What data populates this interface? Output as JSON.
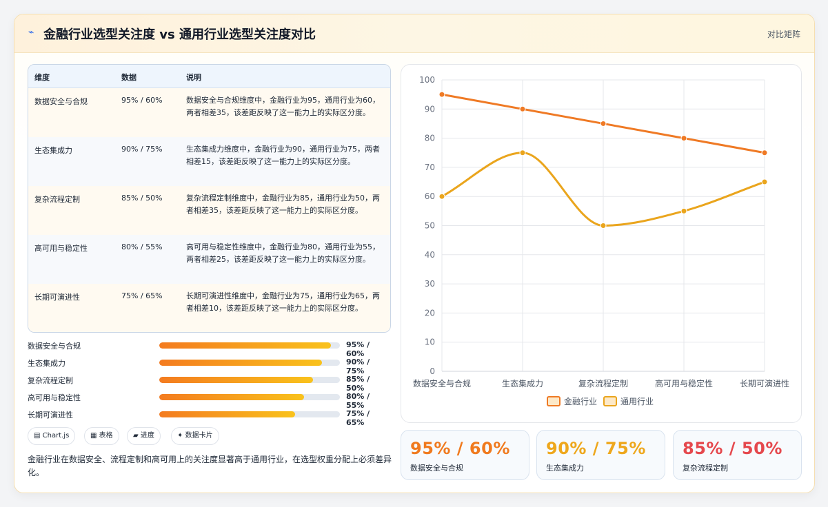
{
  "header": {
    "icon": "bolt-icon",
    "title": "金融行业选型关注度 vs 通用行业选型关注度对比",
    "tag": "对比矩阵"
  },
  "table": {
    "headers": [
      "维度",
      "数据",
      "说明"
    ],
    "rows": [
      {
        "dim": "数据安全与合规",
        "value": "95% / 60%",
        "desc": "数据安全与合规维度中，金融行业为95，通用行业为60，两者相差35，该差距反映了这一能力上的实际区分度。"
      },
      {
        "dim": "生态集成力",
        "value": "90% / 75%",
        "desc": "生态集成力维度中，金融行业为90，通用行业为75，两者相差15，该差距反映了这一能力上的实际区分度。"
      },
      {
        "dim": "复杂流程定制",
        "value": "85% / 50%",
        "desc": "复杂流程定制维度中，金融行业为85，通用行业为50，两者相差35，该差距反映了这一能力上的实际区分度。"
      },
      {
        "dim": "高可用与稳定性",
        "value": "80% / 55%",
        "desc": "高可用与稳定性维度中，金融行业为80，通用行业为55，两者相差25，该差距反映了这一能力上的实际区分度。"
      },
      {
        "dim": "长期可演进性",
        "value": "75% / 65%",
        "desc": "长期可演进性维度中，金融行业为75，通用行业为65，两者相差10，该差距反映了这一能力上的实际区分度。"
      }
    ]
  },
  "progress": [
    {
      "label": "数据安全与合规",
      "level": 95,
      "value": "95% / 60%"
    },
    {
      "label": "生态集成力",
      "level": 90,
      "value": "90% / 75%"
    },
    {
      "label": "复杂流程定制",
      "level": 85,
      "value": "85% / 50%"
    },
    {
      "label": "高可用与稳定性",
      "level": 80,
      "value": "80% / 55%"
    },
    {
      "label": "长期可演进性",
      "level": 75,
      "value": "75% / 65%"
    }
  ],
  "pills": [
    {
      "icon": "chart-icon",
      "glyph": "▤",
      "label": "Chart.js"
    },
    {
      "icon": "table-icon",
      "glyph": "▦",
      "label": "表格"
    },
    {
      "icon": "progress-icon",
      "glyph": "▰",
      "label": "进度"
    },
    {
      "icon": "card-icon",
      "glyph": "✦",
      "label": "数据卡片"
    }
  ],
  "summary": "金融行业在数据安全、流程定制和高可用上的关注度显著高于通用行业，在选型权重分配上必须差异化。",
  "stats": [
    {
      "value": "95% / 60%",
      "label": "数据安全与合规",
      "color": "#f07a1e"
    },
    {
      "value": "90% / 75%",
      "label": "生态集成力",
      "color": "#eea71c"
    },
    {
      "value": "85% / 50%",
      "label": "复杂流程定制",
      "color": "#e5484d"
    }
  ],
  "chart_data": {
    "type": "line",
    "categories": [
      "数据安全与合规",
      "生态集成力",
      "复杂流程定制",
      "高可用与稳定性",
      "长期可演进性"
    ],
    "series": [
      {
        "name": "金融行业",
        "values": [
          95,
          90,
          85,
          80,
          75
        ],
        "color": "#ef7a25"
      },
      {
        "name": "通用行业",
        "values": [
          60,
          75,
          50,
          55,
          65
        ],
        "color": "#eaa51d"
      }
    ],
    "ylim": [
      0,
      100
    ],
    "yticks": [
      0,
      10,
      20,
      30,
      40,
      50,
      60,
      70,
      80,
      90,
      100
    ],
    "grid": true,
    "legend": "bottom"
  }
}
